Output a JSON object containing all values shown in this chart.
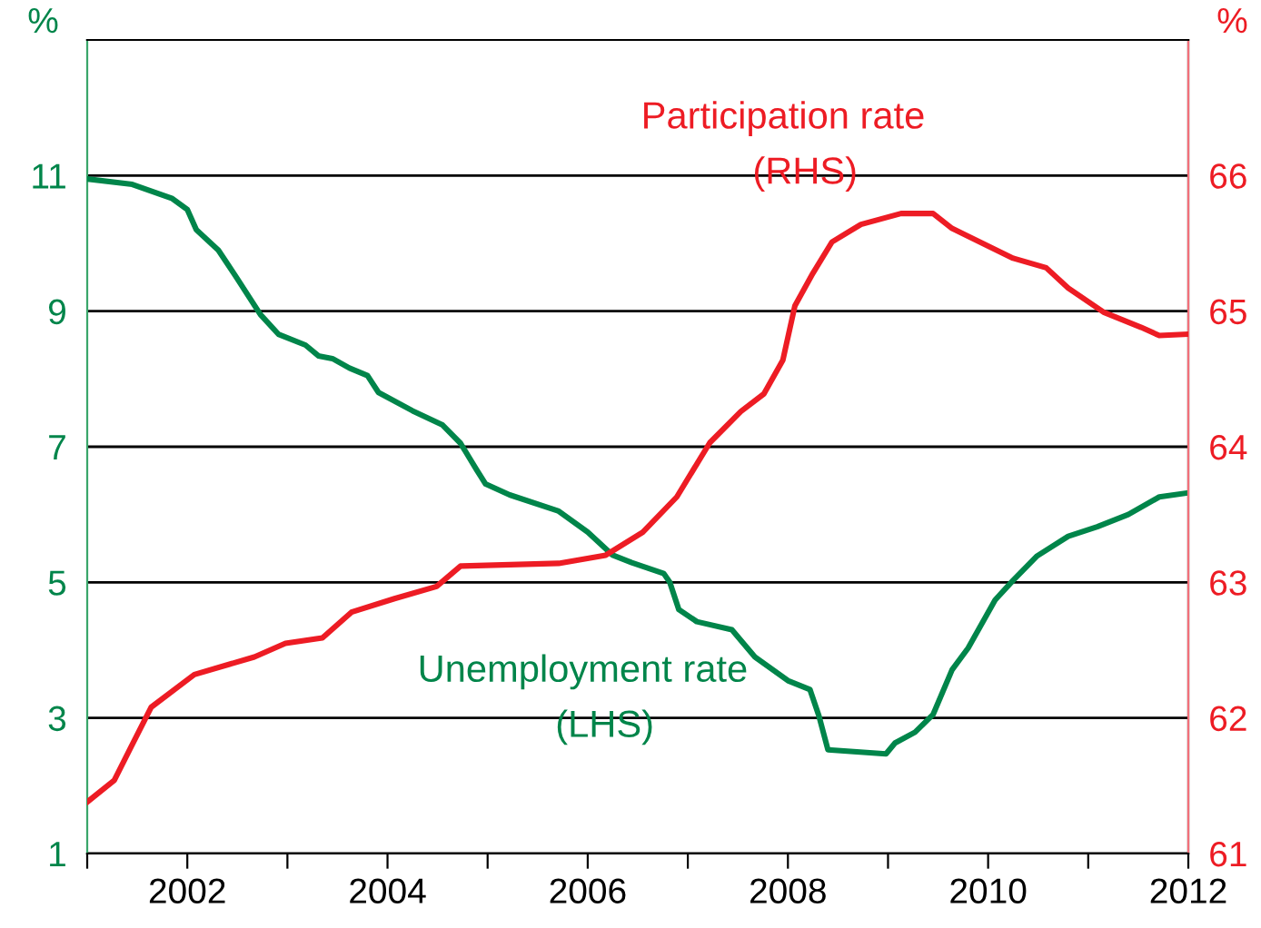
{
  "chart_data": {
    "type": "line",
    "ylabel": "%",
    "y2label": "%",
    "xlim": [
      2001,
      2012
    ],
    "xticks": [
      {
        "value": 2001,
        "label": null
      },
      2002,
      {
        "value": 2003,
        "label": null
      },
      2004,
      {
        "value": 2005,
        "label": null
      },
      2006,
      {
        "value": 2007,
        "label": null
      },
      2008,
      {
        "value": 2009,
        "label": null
      },
      2010,
      {
        "value": 2011,
        "label": null
      },
      2012
    ],
    "ylim": [
      1,
      13
    ],
    "yticks": [
      1,
      3,
      5,
      7,
      9,
      11
    ],
    "y2lim": [
      61,
      67
    ],
    "y2ticks": [
      61,
      62,
      63,
      64,
      65,
      66
    ],
    "grid": "y",
    "legend": false,
    "marker": "none",
    "line_style": "solid",
    "annotations": [
      "(RHS)",
      "(LHS)"
    ],
    "series": [
      {
        "name": "Unemployment rate",
        "color": "#00854a",
        "axis": "y",
        "x": [
          2001.0,
          2001.45,
          2001.85,
          2002.0,
          2002.09,
          2002.31,
          2002.49,
          2002.73,
          2002.91,
          2003.18,
          2003.31,
          2003.45,
          2003.62,
          2003.8,
          2003.91,
          2004.25,
          2004.55,
          2004.73,
          2004.89,
          2004.98,
          2005.22,
          2005.71,
          2006.0,
          2006.25,
          2006.44,
          2006.76,
          2006.82,
          2006.91,
          2007.09,
          2007.44,
          2007.67,
          2008.0,
          2008.22,
          2008.31,
          2008.4,
          2008.98,
          2009.07,
          2009.27,
          2009.45,
          2009.64,
          2009.8,
          2010.07,
          2010.25,
          2010.49,
          2010.8,
          2011.09,
          2011.4,
          2011.71,
          2012.0
        ],
        "values": [
          10.95,
          10.87,
          10.66,
          10.5,
          10.2,
          9.9,
          9.5,
          8.95,
          8.66,
          8.5,
          8.34,
          8.3,
          8.16,
          8.05,
          7.8,
          7.53,
          7.32,
          7.05,
          6.66,
          6.45,
          6.29,
          6.05,
          5.74,
          5.4,
          5.29,
          5.13,
          5.0,
          4.6,
          4.42,
          4.3,
          3.9,
          3.55,
          3.42,
          3.03,
          2.53,
          2.47,
          2.63,
          2.79,
          3.05,
          3.71,
          4.03,
          4.74,
          5.03,
          5.39,
          5.68,
          5.82,
          6.0,
          6.26,
          6.32
        ]
      },
      {
        "name": "Participation rate",
        "color": "#ed1c24",
        "axis": "y2",
        "x": [
          2001.0,
          2001.27,
          2001.44,
          2001.64,
          2002.07,
          2002.67,
          2002.98,
          2003.35,
          2003.64,
          2004.07,
          2004.49,
          2004.73,
          2005.71,
          2006.18,
          2006.55,
          2006.89,
          2007.22,
          2007.53,
          2007.76,
          2007.95,
          2008.07,
          2008.25,
          2008.44,
          2008.73,
          2009.13,
          2009.45,
          2009.64,
          2010.25,
          2010.58,
          2010.8,
          2011.16,
          2011.53,
          2011.71,
          2012.0
        ],
        "values": [
          61.38,
          61.54,
          61.79,
          62.08,
          62.32,
          62.45,
          62.55,
          62.59,
          62.78,
          62.88,
          62.97,
          63.12,
          63.14,
          63.2,
          63.37,
          63.63,
          64.03,
          64.26,
          64.39,
          64.64,
          65.04,
          65.28,
          65.51,
          65.64,
          65.72,
          65.72,
          65.61,
          65.39,
          65.32,
          65.17,
          64.99,
          64.88,
          64.82,
          64.83
        ]
      }
    ]
  }
}
